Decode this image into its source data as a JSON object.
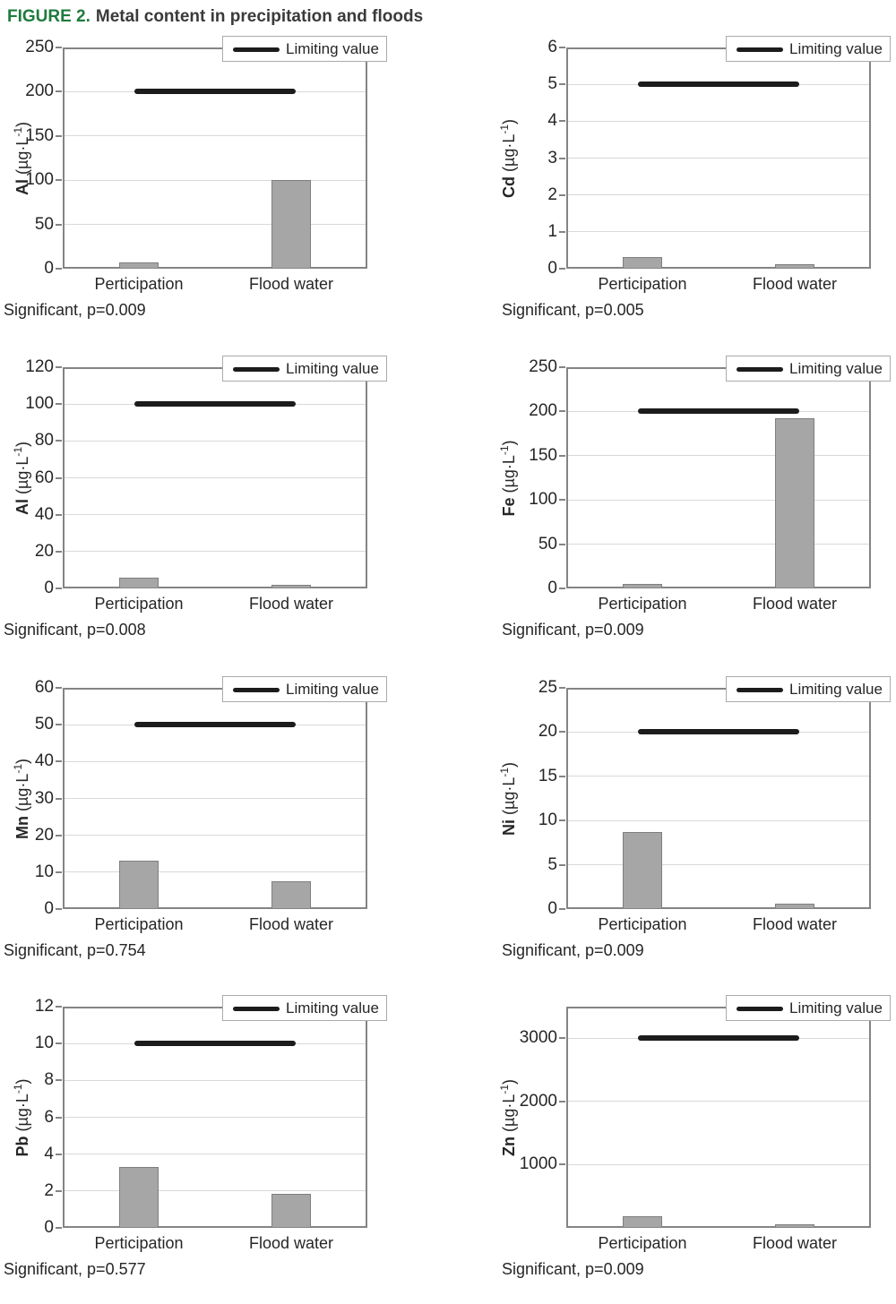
{
  "figure": {
    "label": "FIGURE 2.",
    "title": "Metal content in precipitation and floods"
  },
  "legend": {
    "label": "Limiting value"
  },
  "colors": {
    "figure_label_green": "#1e7b3d",
    "bar_fill": "#a6a6a6",
    "bar_border": "#7f7f7f",
    "gridline": "#d9d9d9",
    "axis_border": "#848484",
    "limit_line": "#1c1c1c",
    "text": "#262626"
  },
  "chart_data": [
    {
      "type": "bar",
      "metal": "Al",
      "unit": "µg·L⁻¹",
      "categories": [
        "Perticipation",
        "Flood water"
      ],
      "values": [
        7,
        100
      ],
      "limiting_value": 200,
      "ylim": [
        0,
        250
      ],
      "yticks": [
        0,
        50,
        100,
        150,
        200,
        250
      ],
      "legend": "Limiting value",
      "significance": "Significant, p=0.009"
    },
    {
      "type": "bar",
      "metal": "Cd",
      "unit": "µg·L⁻¹",
      "categories": [
        "Perticipation",
        "Flood water"
      ],
      "values": [
        0.32,
        0.12
      ],
      "limiting_value": 5,
      "ylim": [
        0,
        6
      ],
      "yticks": [
        0,
        1,
        2,
        3,
        4,
        5,
        6
      ],
      "legend": "Limiting value",
      "significance": "Significant, p=0.005"
    },
    {
      "type": "bar",
      "metal": "Al",
      "unit": "µg·L⁻¹",
      "categories": [
        "Perticipation",
        "Flood water"
      ],
      "values": [
        6,
        2
      ],
      "limiting_value": 100,
      "ylim": [
        0,
        120
      ],
      "yticks": [
        0,
        20,
        40,
        60,
        80,
        100,
        120
      ],
      "legend": "Limiting value",
      "significance": "Significant, p=0.008"
    },
    {
      "type": "bar",
      "metal": "Fe",
      "unit": "µg·L⁻¹",
      "categories": [
        "Perticipation",
        "Flood water"
      ],
      "values": [
        5,
        192
      ],
      "limiting_value": 200,
      "ylim": [
        0,
        250
      ],
      "yticks": [
        0,
        50,
        100,
        150,
        200,
        250
      ],
      "legend": "Limiting value",
      "significance": "Significant, p=0.009"
    },
    {
      "type": "bar",
      "metal": "Mn",
      "unit": "µg·L⁻¹",
      "categories": [
        "Perticipation",
        "Flood water"
      ],
      "values": [
        13,
        7.5
      ],
      "limiting_value": 50,
      "ylim": [
        0,
        60
      ],
      "yticks": [
        0,
        10,
        20,
        30,
        40,
        50,
        60
      ],
      "legend": "Limiting value",
      "significance": "Significant, p=0.754"
    },
    {
      "type": "bar",
      "metal": "Ni",
      "unit": "µg·L⁻¹",
      "categories": [
        "Perticipation",
        "Flood water"
      ],
      "values": [
        8.7,
        0.6
      ],
      "limiting_value": 20,
      "ylim": [
        0,
        25
      ],
      "yticks": [
        0,
        5,
        10,
        15,
        20,
        25
      ],
      "legend": "Limiting value",
      "significance": "Significant, p=0.009"
    },
    {
      "type": "bar",
      "metal": "Pb",
      "unit": "µg·L⁻¹",
      "categories": [
        "Perticipation",
        "Flood water"
      ],
      "values": [
        3.3,
        1.85
      ],
      "limiting_value": 10,
      "ylim": [
        0,
        12
      ],
      "yticks": [
        0,
        2,
        4,
        6,
        8,
        10,
        12
      ],
      "legend": "Limiting value",
      "significance": "Significant, p=0.577"
    },
    {
      "type": "bar",
      "metal": "Zn",
      "unit": "µg·L⁻¹",
      "categories": [
        "Perticipation",
        "Flood water"
      ],
      "values": [
        180,
        55
      ],
      "limiting_value": 3000,
      "ylim": [
        0,
        3500
      ],
      "yticks": [
        1000,
        2000,
        3000
      ],
      "legend": "Limiting value",
      "significance": "Significant, p=0.009"
    }
  ]
}
